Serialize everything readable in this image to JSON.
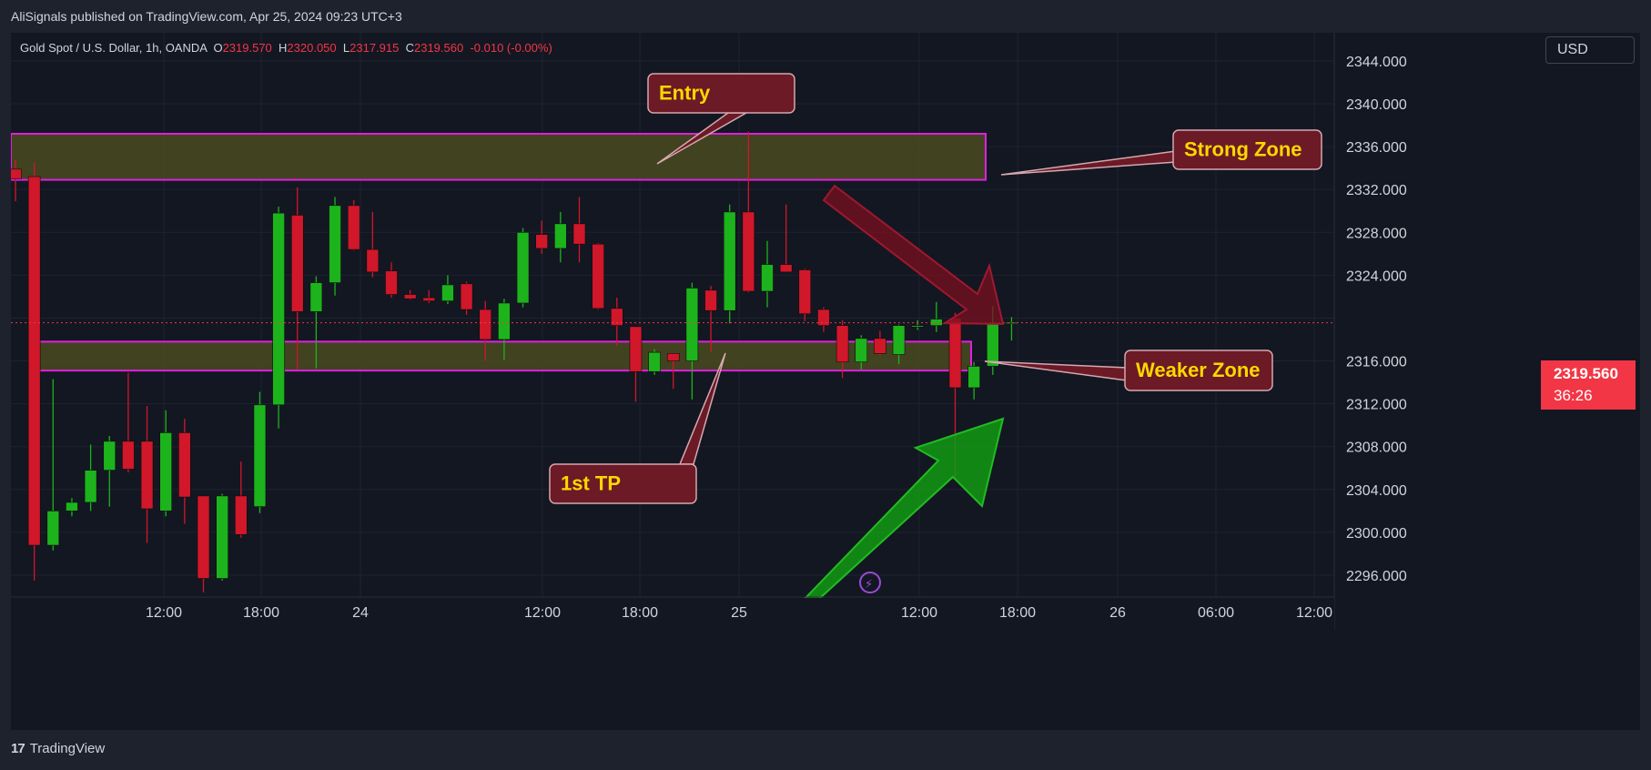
{
  "header": {
    "publisher": "AliSignals published on TradingView.com, Apr 25, 2024 09:23 UTC+3"
  },
  "symbol": {
    "title": "Gold Spot / U.S. Dollar, 1h, OANDA",
    "o_label": "O",
    "o_value": "2319.570",
    "h_label": "H",
    "h_value": "2320.050",
    "l_label": "L",
    "l_value": "2317.915",
    "c_label": "C",
    "c_value": "2319.560",
    "change": "-0.010 (-0.00%)"
  },
  "currency_button": "USD",
  "last_price": {
    "price": "2319.560",
    "countdown": "36:26"
  },
  "footer": {
    "brand": "TradingView",
    "logo": "17"
  },
  "colors": {
    "up": "#089981",
    "up_fill": "#1db31d",
    "down": "#d1172a",
    "bg": "#131722",
    "zone_fill": "#4a4a1e",
    "zone_border": "#e020e0",
    "callout_fill": "#6b1a26",
    "callout_text": "#ffd700"
  },
  "chart_data": {
    "type": "candlestick",
    "y_ticks": [
      "2296.000",
      "2300.000",
      "2304.000",
      "2308.000",
      "2312.000",
      "2316.000",
      "2320.000",
      "2324.000",
      "2328.000",
      "2332.000",
      "2336.000",
      "2340.000",
      "2344.000"
    ],
    "ylim": [
      2294.0,
      2345.0
    ],
    "x_tick_labels": [
      "12:00",
      "18:00",
      "24",
      "12:00",
      "18:00",
      "25",
      "12:00",
      "18:00",
      "26",
      "06:00",
      "12:00"
    ],
    "last_price": 2319.56,
    "candles": [
      {
        "o": 2333.9,
        "h": 2334.8,
        "l": 2330.9,
        "c": 2333.0
      },
      {
        "o": 2333.2,
        "h": 2334.5,
        "l": 2295.5,
        "c": 2298.8
      },
      {
        "o": 2298.8,
        "h": 2314.3,
        "l": 2298.3,
        "c": 2302.0
      },
      {
        "o": 2302.0,
        "h": 2303.2,
        "l": 2301.5,
        "c": 2302.8
      },
      {
        "o": 2302.8,
        "h": 2308.2,
        "l": 2302.0,
        "c": 2305.8
      },
      {
        "o": 2305.8,
        "h": 2309.0,
        "l": 2302.4,
        "c": 2308.5
      },
      {
        "o": 2308.5,
        "h": 2314.9,
        "l": 2305.6,
        "c": 2305.9
      },
      {
        "o": 2308.5,
        "h": 2311.8,
        "l": 2299.0,
        "c": 2302.2
      },
      {
        "o": 2302.0,
        "h": 2311.4,
        "l": 2301.5,
        "c": 2309.3
      },
      {
        "o": 2309.3,
        "h": 2310.6,
        "l": 2300.8,
        "c": 2303.3
      },
      {
        "o": 2303.4,
        "h": 2303.4,
        "l": 2294.4,
        "c": 2295.7
      },
      {
        "o": 2295.7,
        "h": 2303.6,
        "l": 2295.5,
        "c": 2303.4
      },
      {
        "o": 2303.4,
        "h": 2306.6,
        "l": 2299.5,
        "c": 2299.8
      },
      {
        "o": 2302.4,
        "h": 2313.1,
        "l": 2301.8,
        "c": 2311.9
      },
      {
        "o": 2311.9,
        "h": 2330.4,
        "l": 2309.7,
        "c": 2329.8
      },
      {
        "o": 2329.6,
        "h": 2332.2,
        "l": 2315.2,
        "c": 2320.6
      },
      {
        "o": 2320.6,
        "h": 2323.9,
        "l": 2315.3,
        "c": 2323.3
      },
      {
        "o": 2323.3,
        "h": 2331.3,
        "l": 2322.1,
        "c": 2330.5
      },
      {
        "o": 2330.5,
        "h": 2331.0,
        "l": 2326.3,
        "c": 2326.4
      },
      {
        "o": 2326.4,
        "h": 2329.9,
        "l": 2323.8,
        "c": 2324.3
      },
      {
        "o": 2324.4,
        "h": 2325.2,
        "l": 2321.9,
        "c": 2322.2
      },
      {
        "o": 2322.2,
        "h": 2322.6,
        "l": 2321.7,
        "c": 2321.8
      },
      {
        "o": 2321.9,
        "h": 2322.6,
        "l": 2321.4,
        "c": 2321.6
      },
      {
        "o": 2321.6,
        "h": 2324.0,
        "l": 2321.3,
        "c": 2323.1
      },
      {
        "o": 2323.2,
        "h": 2323.4,
        "l": 2320.3,
        "c": 2320.8
      },
      {
        "o": 2320.8,
        "h": 2321.6,
        "l": 2316.0,
        "c": 2318.0
      },
      {
        "o": 2318.0,
        "h": 2321.8,
        "l": 2316.1,
        "c": 2321.4
      },
      {
        "o": 2321.4,
        "h": 2328.4,
        "l": 2321.0,
        "c": 2328.0
      },
      {
        "o": 2327.8,
        "h": 2329.1,
        "l": 2326.0,
        "c": 2326.5
      },
      {
        "o": 2326.5,
        "h": 2329.9,
        "l": 2325.2,
        "c": 2328.8
      },
      {
        "o": 2328.8,
        "h": 2331.3,
        "l": 2325.2,
        "c": 2326.9
      },
      {
        "o": 2326.9,
        "h": 2327.0,
        "l": 2320.8,
        "c": 2320.9
      },
      {
        "o": 2320.9,
        "h": 2321.9,
        "l": 2317.4,
        "c": 2319.3
      },
      {
        "o": 2319.2,
        "h": 2319.2,
        "l": 2312.2,
        "c": 2315.0
      },
      {
        "o": 2315.0,
        "h": 2317.1,
        "l": 2314.7,
        "c": 2316.8
      },
      {
        "o": 2316.7,
        "h": 2316.7,
        "l": 2313.4,
        "c": 2316.0
      },
      {
        "o": 2316.0,
        "h": 2323.3,
        "l": 2312.4,
        "c": 2322.8
      },
      {
        "o": 2322.6,
        "h": 2323.0,
        "l": 2316.8,
        "c": 2320.7
      },
      {
        "o": 2320.7,
        "h": 2330.6,
        "l": 2319.5,
        "c": 2329.9
      },
      {
        "o": 2329.9,
        "h": 2337.4,
        "l": 2322.4,
        "c": 2322.5
      },
      {
        "o": 2322.5,
        "h": 2327.2,
        "l": 2321.0,
        "c": 2325.0
      },
      {
        "o": 2325.0,
        "h": 2330.6,
        "l": 2324.3,
        "c": 2324.3
      },
      {
        "o": 2324.5,
        "h": 2324.6,
        "l": 2319.7,
        "c": 2320.4
      },
      {
        "o": 2320.8,
        "h": 2321.0,
        "l": 2318.7,
        "c": 2319.3
      },
      {
        "o": 2319.3,
        "h": 2319.8,
        "l": 2314.4,
        "c": 2315.9
      },
      {
        "o": 2315.9,
        "h": 2318.4,
        "l": 2315.2,
        "c": 2318.1
      },
      {
        "o": 2318.1,
        "h": 2318.8,
        "l": 2316.5,
        "c": 2316.7
      },
      {
        "o": 2316.6,
        "h": 2319.4,
        "l": 2315.7,
        "c": 2319.3
      },
      {
        "o": 2319.3,
        "h": 2319.8,
        "l": 2318.9,
        "c": 2319.3
      },
      {
        "o": 2319.3,
        "h": 2321.5,
        "l": 2318.7,
        "c": 2319.9
      },
      {
        "o": 2320.0,
        "h": 2320.5,
        "l": 2305.2,
        "c": 2313.5
      },
      {
        "o": 2313.5,
        "h": 2315.9,
        "l": 2312.4,
        "c": 2315.5
      },
      {
        "o": 2315.5,
        "h": 2321.1,
        "l": 2314.7,
        "c": 2319.5
      },
      {
        "o": 2319.6,
        "h": 2320.1,
        "l": 2317.9,
        "c": 2319.6
      }
    ],
    "annotations": {
      "entry": "Entry",
      "strong_zone": "Strong Zone",
      "weaker_zone": "Weaker Zone",
      "first_tp": "1st TP"
    },
    "zones": [
      {
        "name": "strong",
        "top": 2337.2,
        "bottom": 2332.9
      },
      {
        "name": "weaker",
        "top": 2317.8,
        "bottom": 2315.1
      }
    ]
  }
}
